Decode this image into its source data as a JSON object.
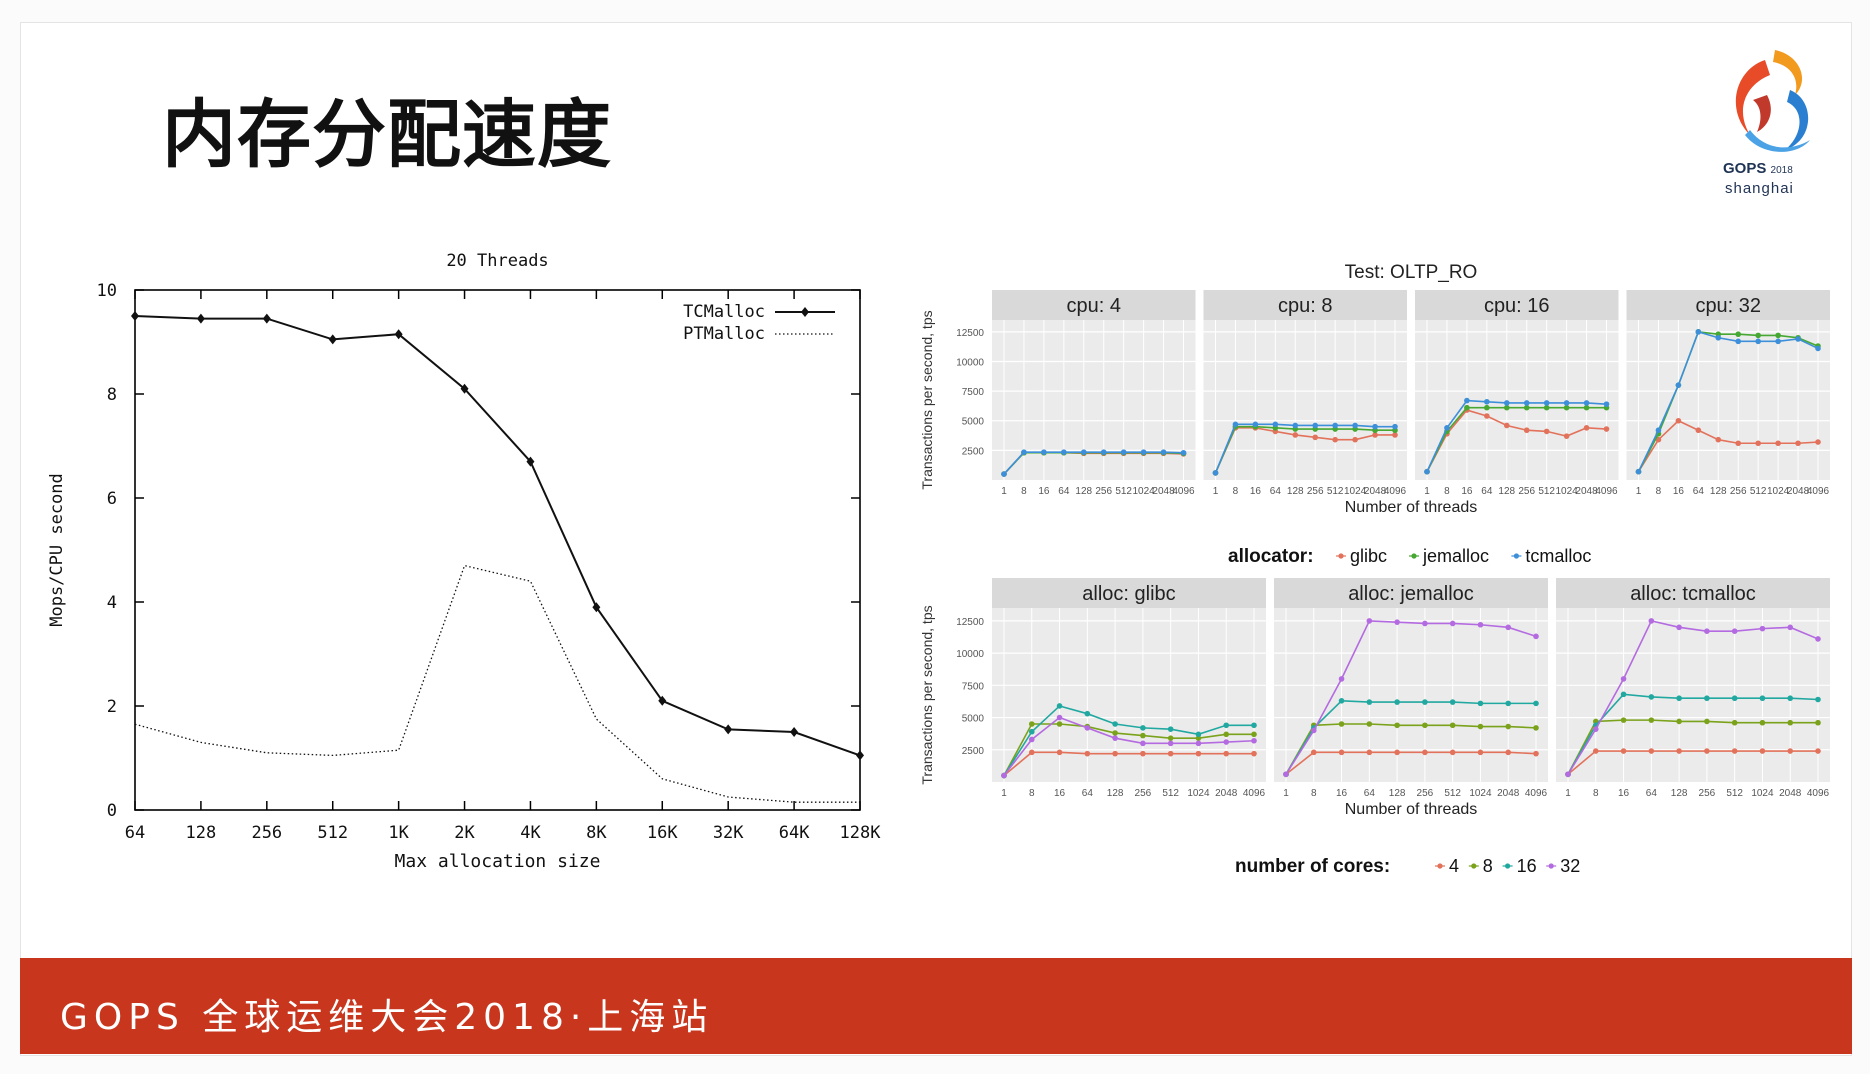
{
  "slide": {
    "title": "内存分配速度",
    "logo": {
      "name": "GOPS",
      "year": "2018",
      "city": "shanghai"
    },
    "footer": "GOPS 全球运维大会2018·上海站"
  },
  "chart_data": [
    {
      "type": "line",
      "title": "20 Threads",
      "xlabel": "Max allocation size",
      "ylabel": "Mops/CPU second",
      "categories": [
        "64",
        "128",
        "256",
        "512",
        "1K",
        "2K",
        "4K",
        "8K",
        "16K",
        "32K",
        "64K",
        "128K"
      ],
      "ylim": [
        0,
        10
      ],
      "yticks": [
        0,
        2,
        4,
        6,
        8,
        10
      ],
      "legend": "top-right",
      "grid": false,
      "series": [
        {
          "name": "TCMalloc",
          "style": "solid-diamond",
          "values": [
            9.5,
            9.45,
            9.45,
            9.05,
            9.15,
            8.1,
            6.7,
            3.9,
            2.1,
            1.55,
            1.5,
            1.05
          ]
        },
        {
          "name": "PTMalloc",
          "style": "dotted",
          "values": [
            1.65,
            1.3,
            1.1,
            1.05,
            1.15,
            4.7,
            4.4,
            1.75,
            0.6,
            0.25,
            0.15,
            0.15
          ]
        }
      ]
    },
    {
      "type": "line",
      "title": "Test:  OLTP_RO",
      "xlabel": "Number of threads",
      "ylabel": "Transactions per second, tps",
      "categories": [
        "1",
        "8",
        "16",
        "64",
        "128",
        "256",
        "512",
        "1024",
        "2048",
        "4096"
      ],
      "ylim": [
        0,
        13500
      ],
      "yticks": [
        2500,
        5000,
        7500,
        10000,
        12500
      ],
      "grid": true,
      "legend_title": "allocator:",
      "legend_items": [
        {
          "name": "glibc",
          "color": "#e2725b"
        },
        {
          "name": "jemalloc",
          "color": "#46a832"
        },
        {
          "name": "tcmalloc",
          "color": "#3d8fd9"
        }
      ],
      "facets": [
        {
          "label": "cpu: 4",
          "series": [
            {
              "name": "glibc",
              "values": [
                500,
                2300,
                2300,
                2300,
                2250,
                2250,
                2250,
                2250,
                2250,
                2200
              ]
            },
            {
              "name": "jemalloc",
              "values": [
                500,
                2300,
                2300,
                2300,
                2300,
                2300,
                2300,
                2300,
                2300,
                2250
              ]
            },
            {
              "name": "tcmalloc",
              "values": [
                500,
                2350,
                2350,
                2350,
                2350,
                2350,
                2350,
                2350,
                2350,
                2300
              ]
            }
          ]
        },
        {
          "label": "cpu: 8",
          "series": [
            {
              "name": "glibc",
              "values": [
                600,
                4400,
                4400,
                4100,
                3800,
                3600,
                3400,
                3400,
                3800,
                3800
              ]
            },
            {
              "name": "jemalloc",
              "values": [
                600,
                4500,
                4500,
                4400,
                4300,
                4300,
                4300,
                4300,
                4200,
                4200
              ]
            },
            {
              "name": "tcmalloc",
              "values": [
                600,
                4700,
                4700,
                4700,
                4600,
                4600,
                4600,
                4600,
                4500,
                4500
              ]
            }
          ]
        },
        {
          "label": "cpu: 16",
          "series": [
            {
              "name": "glibc",
              "values": [
                700,
                3900,
                5900,
                5400,
                4600,
                4200,
                4100,
                3700,
                4400,
                4300
              ]
            },
            {
              "name": "jemalloc",
              "values": [
                700,
                4100,
                6100,
                6100,
                6100,
                6100,
                6100,
                6100,
                6100,
                6100
              ]
            },
            {
              "name": "tcmalloc",
              "values": [
                700,
                4400,
                6700,
                6600,
                6500,
                6500,
                6500,
                6500,
                6500,
                6400
              ]
            }
          ]
        },
        {
          "label": "cpu: 32",
          "series": [
            {
              "name": "glibc",
              "values": [
                700,
                3400,
                5000,
                4200,
                3400,
                3100,
                3100,
                3100,
                3100,
                3200
              ]
            },
            {
              "name": "jemalloc",
              "values": [
                700,
                3900,
                8000,
                12500,
                12300,
                12300,
                12200,
                12200,
                12000,
                11300
              ]
            },
            {
              "name": "tcmalloc",
              "values": [
                700,
                4200,
                8000,
                12500,
                12000,
                11700,
                11700,
                11700,
                11900,
                11100
              ]
            }
          ]
        }
      ]
    },
    {
      "type": "line",
      "xlabel": "Number of threads",
      "ylabel": "Transactions per second, tps",
      "categories": [
        "1",
        "8",
        "16",
        "64",
        "128",
        "256",
        "512",
        "1024",
        "2048",
        "4096"
      ],
      "ylim": [
        0,
        13500
      ],
      "yticks": [
        2500,
        5000,
        7500,
        10000,
        12500
      ],
      "grid": true,
      "legend_title": "number of cores:",
      "legend_items": [
        {
          "name": "4",
          "color": "#e2725b"
        },
        {
          "name": "8",
          "color": "#7aa21a"
        },
        {
          "name": "16",
          "color": "#21a8a0"
        },
        {
          "name": "32",
          "color": "#b46ae0"
        }
      ],
      "facets": [
        {
          "label": "alloc: glibc",
          "series": [
            {
              "name": "4",
              "values": [
                500,
                2300,
                2300,
                2200,
                2200,
                2200,
                2200,
                2200,
                2200,
                2200
              ]
            },
            {
              "name": "8",
              "values": [
                500,
                4500,
                4500,
                4300,
                3800,
                3600,
                3400,
                3400,
                3700,
                3700
              ]
            },
            {
              "name": "16",
              "values": [
                500,
                3900,
                5900,
                5300,
                4500,
                4200,
                4100,
                3700,
                4400,
                4400
              ]
            },
            {
              "name": "32",
              "values": [
                500,
                3300,
                5000,
                4200,
                3400,
                3000,
                3000,
                3000,
                3100,
                3200
              ]
            }
          ]
        },
        {
          "label": "alloc: jemalloc",
          "series": [
            {
              "name": "4",
              "values": [
                600,
                2300,
                2300,
                2300,
                2300,
                2300,
                2300,
                2300,
                2300,
                2200
              ]
            },
            {
              "name": "8",
              "values": [
                600,
                4400,
                4500,
                4500,
                4400,
                4400,
                4400,
                4300,
                4300,
                4200
              ]
            },
            {
              "name": "16",
              "values": [
                600,
                4200,
                6300,
                6200,
                6200,
                6200,
                6200,
                6100,
                6100,
                6100
              ]
            },
            {
              "name": "32",
              "values": [
                600,
                4000,
                8000,
                12500,
                12400,
                12300,
                12300,
                12200,
                12000,
                11300
              ]
            }
          ]
        },
        {
          "label": "alloc: tcmalloc",
          "series": [
            {
              "name": "4",
              "values": [
                600,
                2400,
                2400,
                2400,
                2400,
                2400,
                2400,
                2400,
                2400,
                2400
              ]
            },
            {
              "name": "8",
              "values": [
                600,
                4700,
                4800,
                4800,
                4700,
                4700,
                4600,
                4600,
                4600,
                4600
              ]
            },
            {
              "name": "16",
              "values": [
                600,
                4400,
                6800,
                6600,
                6500,
                6500,
                6500,
                6500,
                6500,
                6400
              ]
            },
            {
              "name": "32",
              "values": [
                600,
                4100,
                8000,
                12500,
                12000,
                11700,
                11700,
                11900,
                12000,
                11100
              ]
            }
          ]
        }
      ]
    }
  ]
}
